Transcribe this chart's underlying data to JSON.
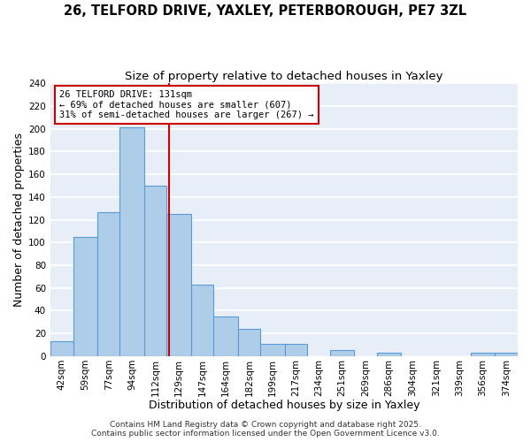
{
  "title": "26, TELFORD DRIVE, YAXLEY, PETERBOROUGH, PE7 3ZL",
  "subtitle": "Size of property relative to detached houses in Yaxley",
  "xlabel": "Distribution of detached houses by size in Yaxley",
  "ylabel": "Number of detached properties",
  "bar_edges": [
    42,
    59,
    77,
    94,
    112,
    129,
    147,
    164,
    182,
    199,
    217,
    234,
    251,
    269,
    286,
    304,
    321,
    339,
    356,
    374,
    391
  ],
  "bar_heights": [
    13,
    105,
    127,
    201,
    150,
    125,
    63,
    35,
    24,
    11,
    11,
    0,
    5,
    0,
    3,
    0,
    0,
    0,
    3,
    3
  ],
  "bar_color": "#aecde8",
  "bar_edge_color": "#5b9bd5",
  "property_line_x": 131,
  "property_line_color": "#cc0000",
  "ylim": [
    0,
    240
  ],
  "yticks": [
    0,
    20,
    40,
    60,
    80,
    100,
    120,
    140,
    160,
    180,
    200,
    220,
    240
  ],
  "annotation_line1": "26 TELFORD DRIVE: 131sqm",
  "annotation_line2": "← 69% of detached houses are smaller (607)",
  "annotation_line3": "31% of semi-detached houses are larger (267) →",
  "footer1": "Contains HM Land Registry data © Crown copyright and database right 2025.",
  "footer2": "Contains public sector information licensed under the Open Government Licence v3.0.",
  "background_color": "#ffffff",
  "plot_bg_color": "#e8eef8",
  "grid_color": "#ffffff",
  "title_fontsize": 10.5,
  "subtitle_fontsize": 9.5,
  "axis_fontsize": 9,
  "tick_fontsize": 7.5,
  "footer_fontsize": 6.5,
  "annot_fontsize": 7.5
}
